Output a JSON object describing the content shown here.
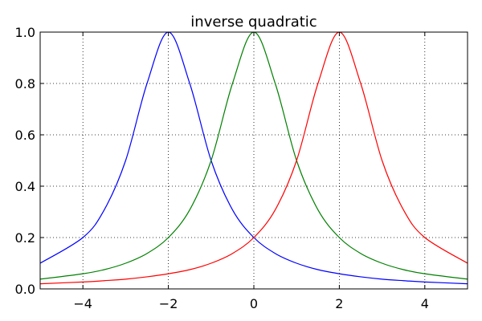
{
  "chart_data": {
    "type": "line",
    "title": "inverse quadratic",
    "xlabel": "",
    "ylabel": "",
    "xlim": [
      -5,
      5
    ],
    "ylim": [
      0,
      1
    ],
    "grid": true,
    "grid_style": "dotted",
    "legend": "none",
    "x_ticks": [
      -4,
      -2,
      0,
      2,
      4
    ],
    "x_tick_labels": [
      "−4",
      "−2",
      "0",
      "2",
      "4"
    ],
    "y_ticks": [
      0.0,
      0.2,
      0.4,
      0.6,
      0.8,
      1.0
    ],
    "y_tick_labels": [
      "0.0",
      "0.2",
      "0.4",
      "0.6",
      "0.8",
      "1.0"
    ],
    "x": [
      -5,
      -4,
      -3.5,
      -3,
      -2.5,
      -2,
      -1.5,
      -1,
      -0.5,
      0,
      0.5,
      1,
      1.5,
      2,
      2.5,
      3,
      3.5,
      4,
      5
    ],
    "series": [
      {
        "color": "#0000ff",
        "values": [
          0.1,
          0.2,
          0.308,
          0.5,
          0.8,
          1.0,
          0.8,
          0.5,
          0.308,
          0.2,
          0.138,
          0.1,
          0.075,
          0.059,
          0.047,
          0.038,
          0.032,
          0.027,
          0.02
        ]
      },
      {
        "color": "#008000",
        "values": [
          0.038,
          0.059,
          0.075,
          0.1,
          0.138,
          0.2,
          0.308,
          0.5,
          0.8,
          1.0,
          0.8,
          0.5,
          0.308,
          0.2,
          0.138,
          0.1,
          0.075,
          0.059,
          0.038
        ]
      },
      {
        "color": "#ff0000",
        "values": [
          0.02,
          0.027,
          0.032,
          0.038,
          0.047,
          0.059,
          0.075,
          0.1,
          0.138,
          0.2,
          0.308,
          0.5,
          0.8,
          1.0,
          0.8,
          0.5,
          0.308,
          0.2,
          0.1
        ]
      }
    ]
  }
}
